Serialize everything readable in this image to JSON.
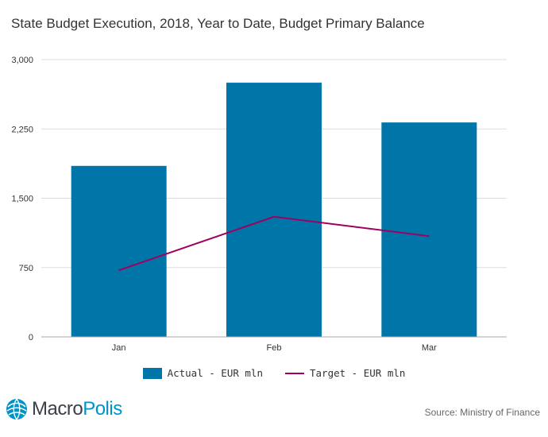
{
  "title": "State Budget Execution, 2018, Year to Date, Budget Primary Balance",
  "colors": {
    "actual": "#0075a8",
    "target": "#a0005f",
    "grid": "#dddddd"
  },
  "chart_data": {
    "type": "bar",
    "categories": [
      "Jan",
      "Feb",
      "Mar"
    ],
    "series": [
      {
        "name": "Actual - EUR mln",
        "kind": "bar",
        "values": [
          1850,
          2750,
          2320
        ]
      },
      {
        "name": "Target - EUR mln",
        "kind": "line",
        "values": [
          720,
          1300,
          1090
        ]
      }
    ],
    "ylim": [
      0,
      3000
    ],
    "yticks": [
      0,
      750,
      1500,
      2250,
      3000
    ],
    "ytick_labels": [
      "0",
      "750",
      "1,500",
      "2,250",
      "3,000"
    ],
    "grid": true,
    "legend": "bottom-center"
  },
  "legend": {
    "actual_label": "Actual - EUR mln",
    "target_label": "Target - EUR mln"
  },
  "logo": {
    "icon": "macropolis-globe-icon",
    "part1": "Macro",
    "part2": "Polis"
  },
  "source": "Source: Ministry of Finance"
}
